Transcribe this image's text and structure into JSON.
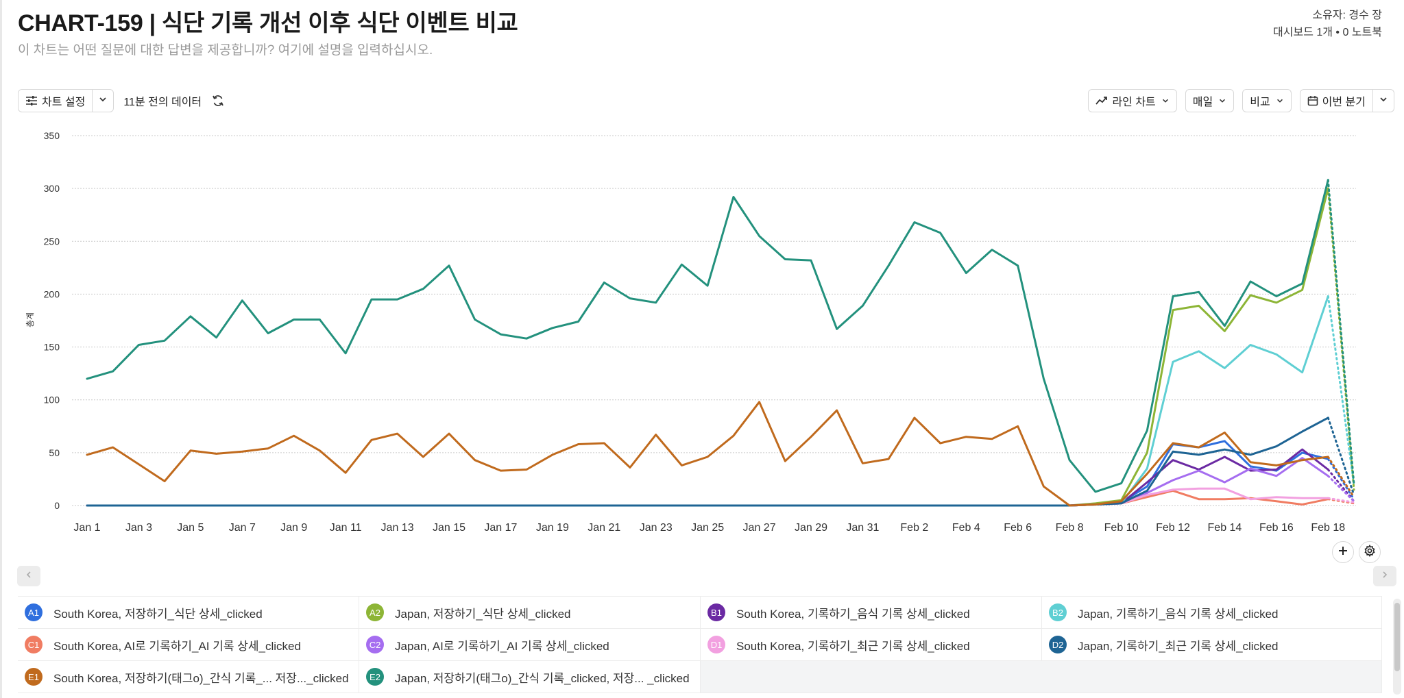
{
  "header": {
    "title": "CHART-159 | 식단 기록 개선 이후 식단 이벤트 비교",
    "description": "이 차트는 어떤 질문에 대한 답변을 제공합니까? 여기에 설명을 입력하십시오.",
    "owner": "소유자: 경수 장",
    "meta": "대시보드 1개 • 0 노트북"
  },
  "toolbar": {
    "chart_settings": "차트 설정",
    "freshness": "11분 전의 데이터",
    "chart_type": "라인 차트",
    "interval": "매일",
    "compare": "비교",
    "date_range": "이번 분기"
  },
  "colors": {
    "A1": "#2f6fde",
    "A2": "#8db536",
    "B1": "#6b2aa3",
    "B2": "#5fcfd3",
    "C1": "#f07c62",
    "C2": "#a56df0",
    "D1": "#f2a0e0",
    "D2": "#1e6494",
    "E1": "#c06a1d",
    "E2": "#23917d"
  },
  "icons": [
    "sliders-icon",
    "chevron-down-icon",
    "refresh-icon",
    "line-chart-icon",
    "calendar-icon",
    "plus-icon",
    "gear-icon",
    "chevron-left-icon",
    "chevron-right-icon"
  ],
  "chart_data": {
    "type": "line",
    "ylabel": "총계",
    "ylim": [
      0,
      350
    ],
    "yticks": [
      0,
      50,
      100,
      150,
      200,
      250,
      300,
      350
    ],
    "grid": true,
    "x": [
      "Jan 1",
      "Jan 2",
      "Jan 3",
      "Jan 4",
      "Jan 5",
      "Jan 6",
      "Jan 7",
      "Jan 8",
      "Jan 9",
      "Jan 10",
      "Jan 11",
      "Jan 12",
      "Jan 13",
      "Jan 14",
      "Jan 15",
      "Jan 16",
      "Jan 17",
      "Jan 18",
      "Jan 19",
      "Jan 20",
      "Jan 21",
      "Jan 22",
      "Jan 23",
      "Jan 24",
      "Jan 25",
      "Jan 26",
      "Jan 27",
      "Jan 28",
      "Jan 29",
      "Jan 30",
      "Jan 31",
      "Feb 1",
      "Feb 2",
      "Feb 3",
      "Feb 4",
      "Feb 5",
      "Feb 6",
      "Feb 7",
      "Feb 8",
      "Feb 9",
      "Feb 10",
      "Feb 11",
      "Feb 12",
      "Feb 13",
      "Feb 14",
      "Feb 15",
      "Feb 16",
      "Feb 17",
      "Feb 18",
      "Feb 19"
    ],
    "xtick_labels": [
      "Jan 1",
      "Jan 3",
      "Jan 5",
      "Jan 7",
      "Jan 9",
      "Jan 11",
      "Jan 13",
      "Jan 15",
      "Jan 17",
      "Jan 19",
      "Jan 21",
      "Jan 23",
      "Jan 25",
      "Jan 27",
      "Jan 29",
      "Jan 31",
      "Feb 2",
      "Feb 4",
      "Feb 6",
      "Feb 8",
      "Feb 10",
      "Feb 12",
      "Feb 14",
      "Feb 16",
      "Feb 18"
    ],
    "partial_last_point": true,
    "series": [
      {
        "name": "South Korea, 저장하기_식단 상세_clicked",
        "badge": "A1",
        "color": "#2f6fde",
        "values": [
          0,
          0,
          0,
          0,
          0,
          0,
          0,
          0,
          0,
          0,
          0,
          0,
          0,
          0,
          0,
          0,
          0,
          0,
          0,
          0,
          0,
          0,
          0,
          0,
          0,
          0,
          0,
          0,
          0,
          0,
          0,
          0,
          0,
          0,
          0,
          0,
          0,
          0,
          0,
          1,
          3,
          18,
          58,
          55,
          61,
          37,
          33,
          50,
          44,
          6
        ]
      },
      {
        "name": "Japan, 저장하기_식단 상세_clicked",
        "badge": "A2",
        "color": "#8db536",
        "values": [
          0,
          0,
          0,
          0,
          0,
          0,
          0,
          0,
          0,
          0,
          0,
          0,
          0,
          0,
          0,
          0,
          0,
          0,
          0,
          0,
          0,
          0,
          0,
          0,
          0,
          0,
          0,
          0,
          0,
          0,
          0,
          0,
          0,
          0,
          0,
          0,
          0,
          0,
          0,
          2,
          5,
          50,
          185,
          189,
          165,
          199,
          192,
          204,
          300,
          15
        ]
      },
      {
        "name": "South Korea, 기록하기_음식 기록 상세_clicked",
        "badge": "B1",
        "color": "#6b2aa3",
        "values": [
          0,
          0,
          0,
          0,
          0,
          0,
          0,
          0,
          0,
          0,
          0,
          0,
          0,
          0,
          0,
          0,
          0,
          0,
          0,
          0,
          0,
          0,
          0,
          0,
          0,
          0,
          0,
          0,
          0,
          0,
          0,
          0,
          0,
          0,
          0,
          0,
          0,
          0,
          0,
          1,
          2,
          22,
          43,
          34,
          46,
          33,
          34,
          53,
          34,
          4
        ]
      },
      {
        "name": "Japan, 기록하기_음식 기록 상세_clicked",
        "badge": "B2",
        "color": "#5fcfd3",
        "values": [
          0,
          0,
          0,
          0,
          0,
          0,
          0,
          0,
          0,
          0,
          0,
          0,
          0,
          0,
          0,
          0,
          0,
          0,
          0,
          0,
          0,
          0,
          0,
          0,
          0,
          0,
          0,
          0,
          0,
          0,
          0,
          0,
          0,
          0,
          0,
          0,
          0,
          0,
          0,
          1,
          2,
          35,
          136,
          146,
          130,
          152,
          143,
          126,
          198,
          20
        ]
      },
      {
        "name": "South Korea, AI로 기록하기_AI 기록 상세_clicked",
        "badge": "C1",
        "color": "#f07c62",
        "values": [
          0,
          0,
          0,
          0,
          0,
          0,
          0,
          0,
          0,
          0,
          0,
          0,
          0,
          0,
          0,
          0,
          0,
          0,
          0,
          0,
          0,
          0,
          0,
          0,
          0,
          0,
          0,
          0,
          0,
          0,
          0,
          0,
          0,
          0,
          0,
          0,
          0,
          0,
          0,
          1,
          2,
          8,
          14,
          6,
          6,
          7,
          4,
          1,
          6,
          2
        ]
      },
      {
        "name": "Japan, AI로 기록하기_AI 기록 상세_clicked",
        "badge": "C2",
        "color": "#a56df0",
        "values": [
          0,
          0,
          0,
          0,
          0,
          0,
          0,
          0,
          0,
          0,
          0,
          0,
          0,
          0,
          0,
          0,
          0,
          0,
          0,
          0,
          0,
          0,
          0,
          0,
          0,
          0,
          0,
          0,
          0,
          0,
          0,
          0,
          0,
          0,
          0,
          0,
          0,
          0,
          0,
          1,
          2,
          12,
          24,
          33,
          22,
          35,
          28,
          45,
          28,
          4
        ]
      },
      {
        "name": "South Korea, 기록하기_최근 기록 상세_clicked",
        "badge": "D1",
        "color": "#f2a0e0",
        "values": [
          0,
          0,
          0,
          0,
          0,
          0,
          0,
          0,
          0,
          0,
          0,
          0,
          0,
          0,
          0,
          0,
          0,
          0,
          0,
          0,
          0,
          0,
          0,
          0,
          0,
          0,
          0,
          0,
          0,
          0,
          0,
          0,
          0,
          0,
          0,
          0,
          0,
          0,
          0,
          1,
          2,
          10,
          15,
          16,
          16,
          6,
          8,
          7,
          7,
          3
        ]
      },
      {
        "name": "Japan, 기록하기_최근 기록 상세_clicked",
        "badge": "D2",
        "color": "#1e6494",
        "values": [
          0,
          0,
          0,
          0,
          0,
          0,
          0,
          0,
          0,
          0,
          0,
          0,
          0,
          0,
          0,
          0,
          0,
          0,
          0,
          0,
          0,
          0,
          0,
          0,
          0,
          0,
          0,
          0,
          0,
          0,
          0,
          0,
          0,
          0,
          0,
          0,
          0,
          0,
          0,
          1,
          2,
          14,
          51,
          48,
          53,
          48,
          56,
          70,
          83,
          10
        ]
      },
      {
        "name": "South Korea, 저장하기(태그o)_간식 기록_... 저장..._clicked",
        "badge": "E1",
        "color": "#c06a1d",
        "values": [
          48,
          55,
          39,
          23,
          52,
          49,
          51,
          54,
          66,
          52,
          31,
          62,
          68,
          46,
          68,
          43,
          33,
          34,
          48,
          58,
          59,
          36,
          67,
          38,
          46,
          66,
          98,
          42,
          65,
          90,
          40,
          44,
          83,
          59,
          65,
          63,
          75,
          18,
          0,
          1,
          4,
          30,
          59,
          55,
          69,
          41,
          38,
          43,
          46,
          8
        ]
      },
      {
        "name": "Japan, 저장하기(태그o)_간식 기록_clicked, 저장... _clicked",
        "badge": "E2",
        "color": "#23917d",
        "values": [
          120,
          127,
          152,
          156,
          179,
          159,
          194,
          163,
          176,
          176,
          144,
          195,
          195,
          205,
          227,
          176,
          162,
          158,
          168,
          174,
          211,
          196,
          192,
          228,
          208,
          292,
          255,
          233,
          232,
          167,
          189,
          227,
          268,
          258,
          220,
          242,
          227,
          120,
          43,
          13,
          21,
          71,
          198,
          202,
          170,
          212,
          198,
          210,
          308,
          20
        ]
      }
    ]
  }
}
